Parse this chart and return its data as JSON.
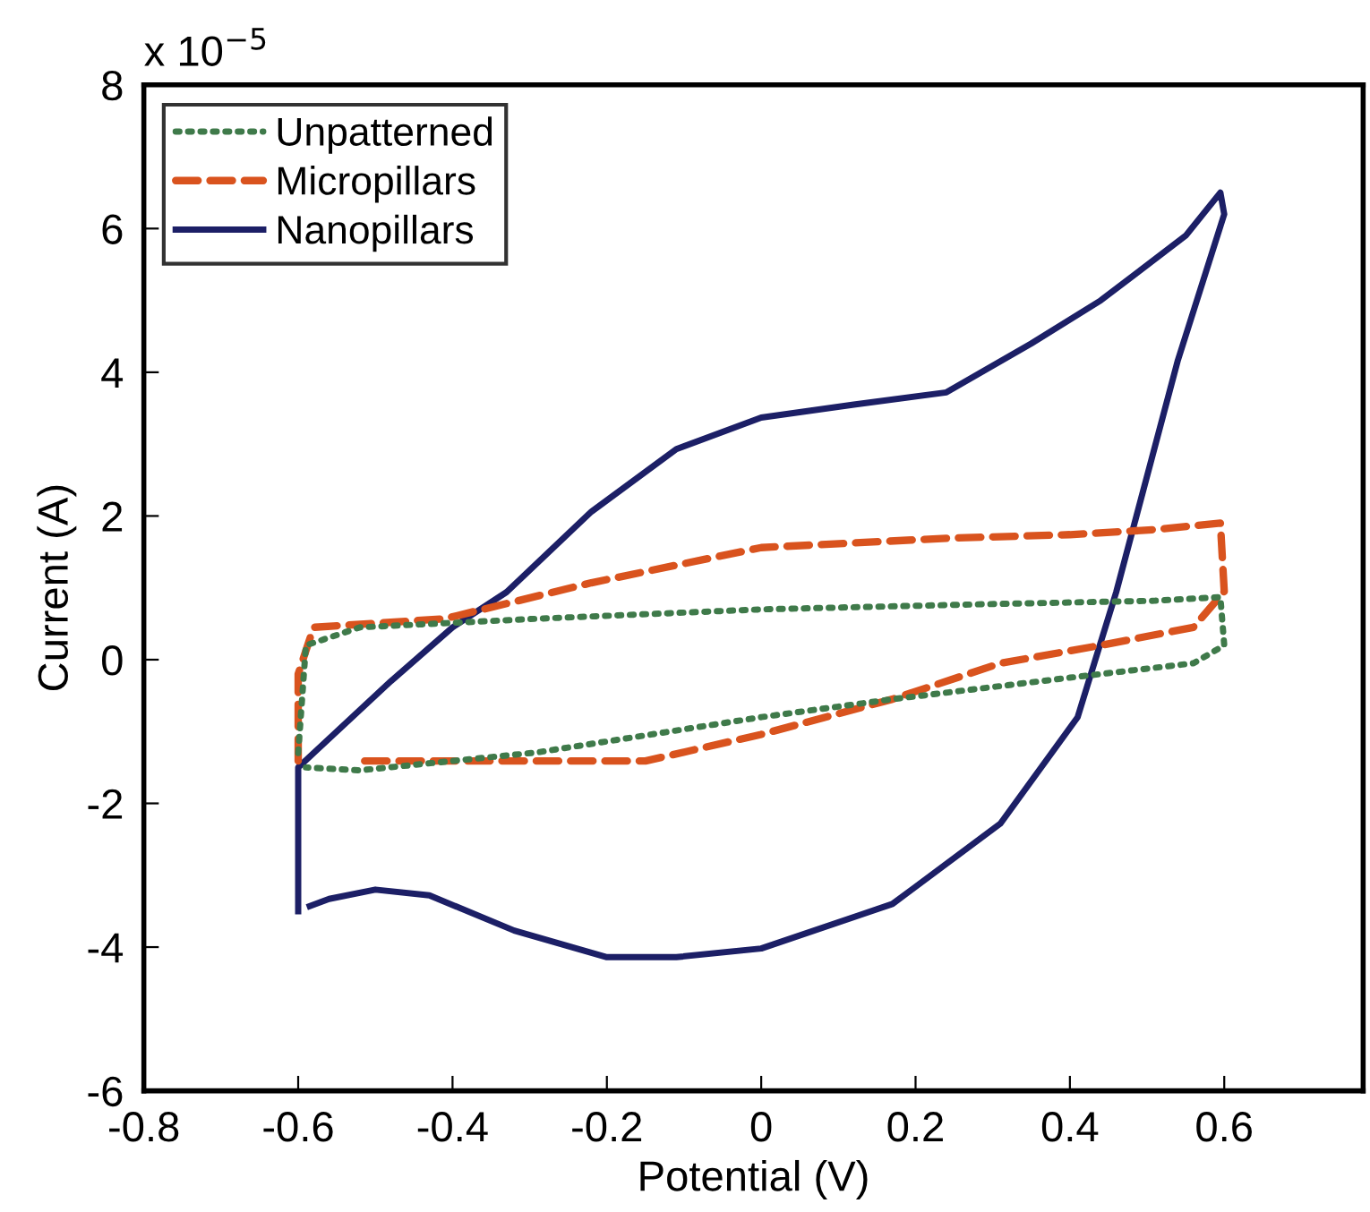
{
  "chart_data": {
    "type": "line",
    "xlabel": "Potential (V)",
    "ylabel": "Current (A)",
    "annotations": [
      "x 10$^{−5}$"
    ],
    "xlim": [
      -0.8,
      0.78
    ],
    "xticks": [
      -0.8,
      -0.6,
      -0.4,
      -0.2,
      0,
      0.2,
      0.4,
      0.6
    ],
    "ylim": [
      -6,
      8
    ],
    "yticks": [
      -6,
      -4,
      -2,
      0,
      2,
      4,
      6,
      8
    ],
    "grid": false,
    "legend": "top left",
    "series": [
      {
        "name": "Unpatterned",
        "color": "#3f7a4a",
        "line_style": "dotted",
        "x": [
          -0.6,
          -0.59,
          -0.52,
          -0.29,
          0.0,
          0.28,
          0.51,
          0.595,
          0.6,
          0.56,
          0.4,
          0.17,
          0.0,
          -0.29,
          -0.52,
          -0.59
        ],
        "values": [
          -1.3,
          0.2,
          0.45,
          0.57,
          0.7,
          0.77,
          0.82,
          0.87,
          0.2,
          -0.05,
          -0.25,
          -0.55,
          -0.8,
          -1.29,
          -1.54,
          -1.5
        ]
      },
      {
        "name": "Micropillars",
        "color": "#d9531e",
        "line_style": "dashed",
        "x": [
          -0.6,
          -0.6,
          -0.58,
          -0.41,
          -0.22,
          0.0,
          0.24,
          0.4,
          0.51,
          0.595,
          0.6,
          0.56,
          0.44,
          0.31,
          0.17,
          0.0,
          -0.15,
          -0.29,
          -0.52
        ],
        "values": [
          -1.41,
          -0.2,
          0.45,
          0.57,
          1.07,
          1.56,
          1.69,
          1.74,
          1.81,
          1.9,
          0.95,
          0.45,
          0.2,
          -0.05,
          -0.55,
          -1.04,
          -1.41,
          -1.41,
          -1.41
        ]
      },
      {
        "name": "Nanopillars",
        "color": "#1c1f66",
        "line_style": "solid",
        "x": [
          -0.6,
          -0.6,
          -0.58,
          -0.48,
          -0.4,
          -0.33,
          -0.22,
          -0.11,
          0.0,
          0.12,
          0.24,
          0.35,
          0.44,
          0.55,
          0.595,
          0.6,
          0.54,
          0.46,
          0.41,
          0.31,
          0.17,
          0.0,
          -0.11,
          -0.2,
          -0.32,
          -0.43,
          -0.5,
          -0.56,
          -0.585
        ],
        "values": [
          -3.5,
          -1.5,
          -1.3,
          -0.3,
          0.45,
          0.94,
          2.06,
          2.93,
          3.37,
          3.55,
          3.72,
          4.4,
          5.0,
          5.9,
          6.5,
          6.2,
          4.17,
          0.94,
          -0.8,
          -2.28,
          -3.4,
          -4.02,
          -4.14,
          -4.14,
          -3.77,
          -3.28,
          -3.2,
          -3.33,
          -3.43
        ]
      }
    ]
  }
}
